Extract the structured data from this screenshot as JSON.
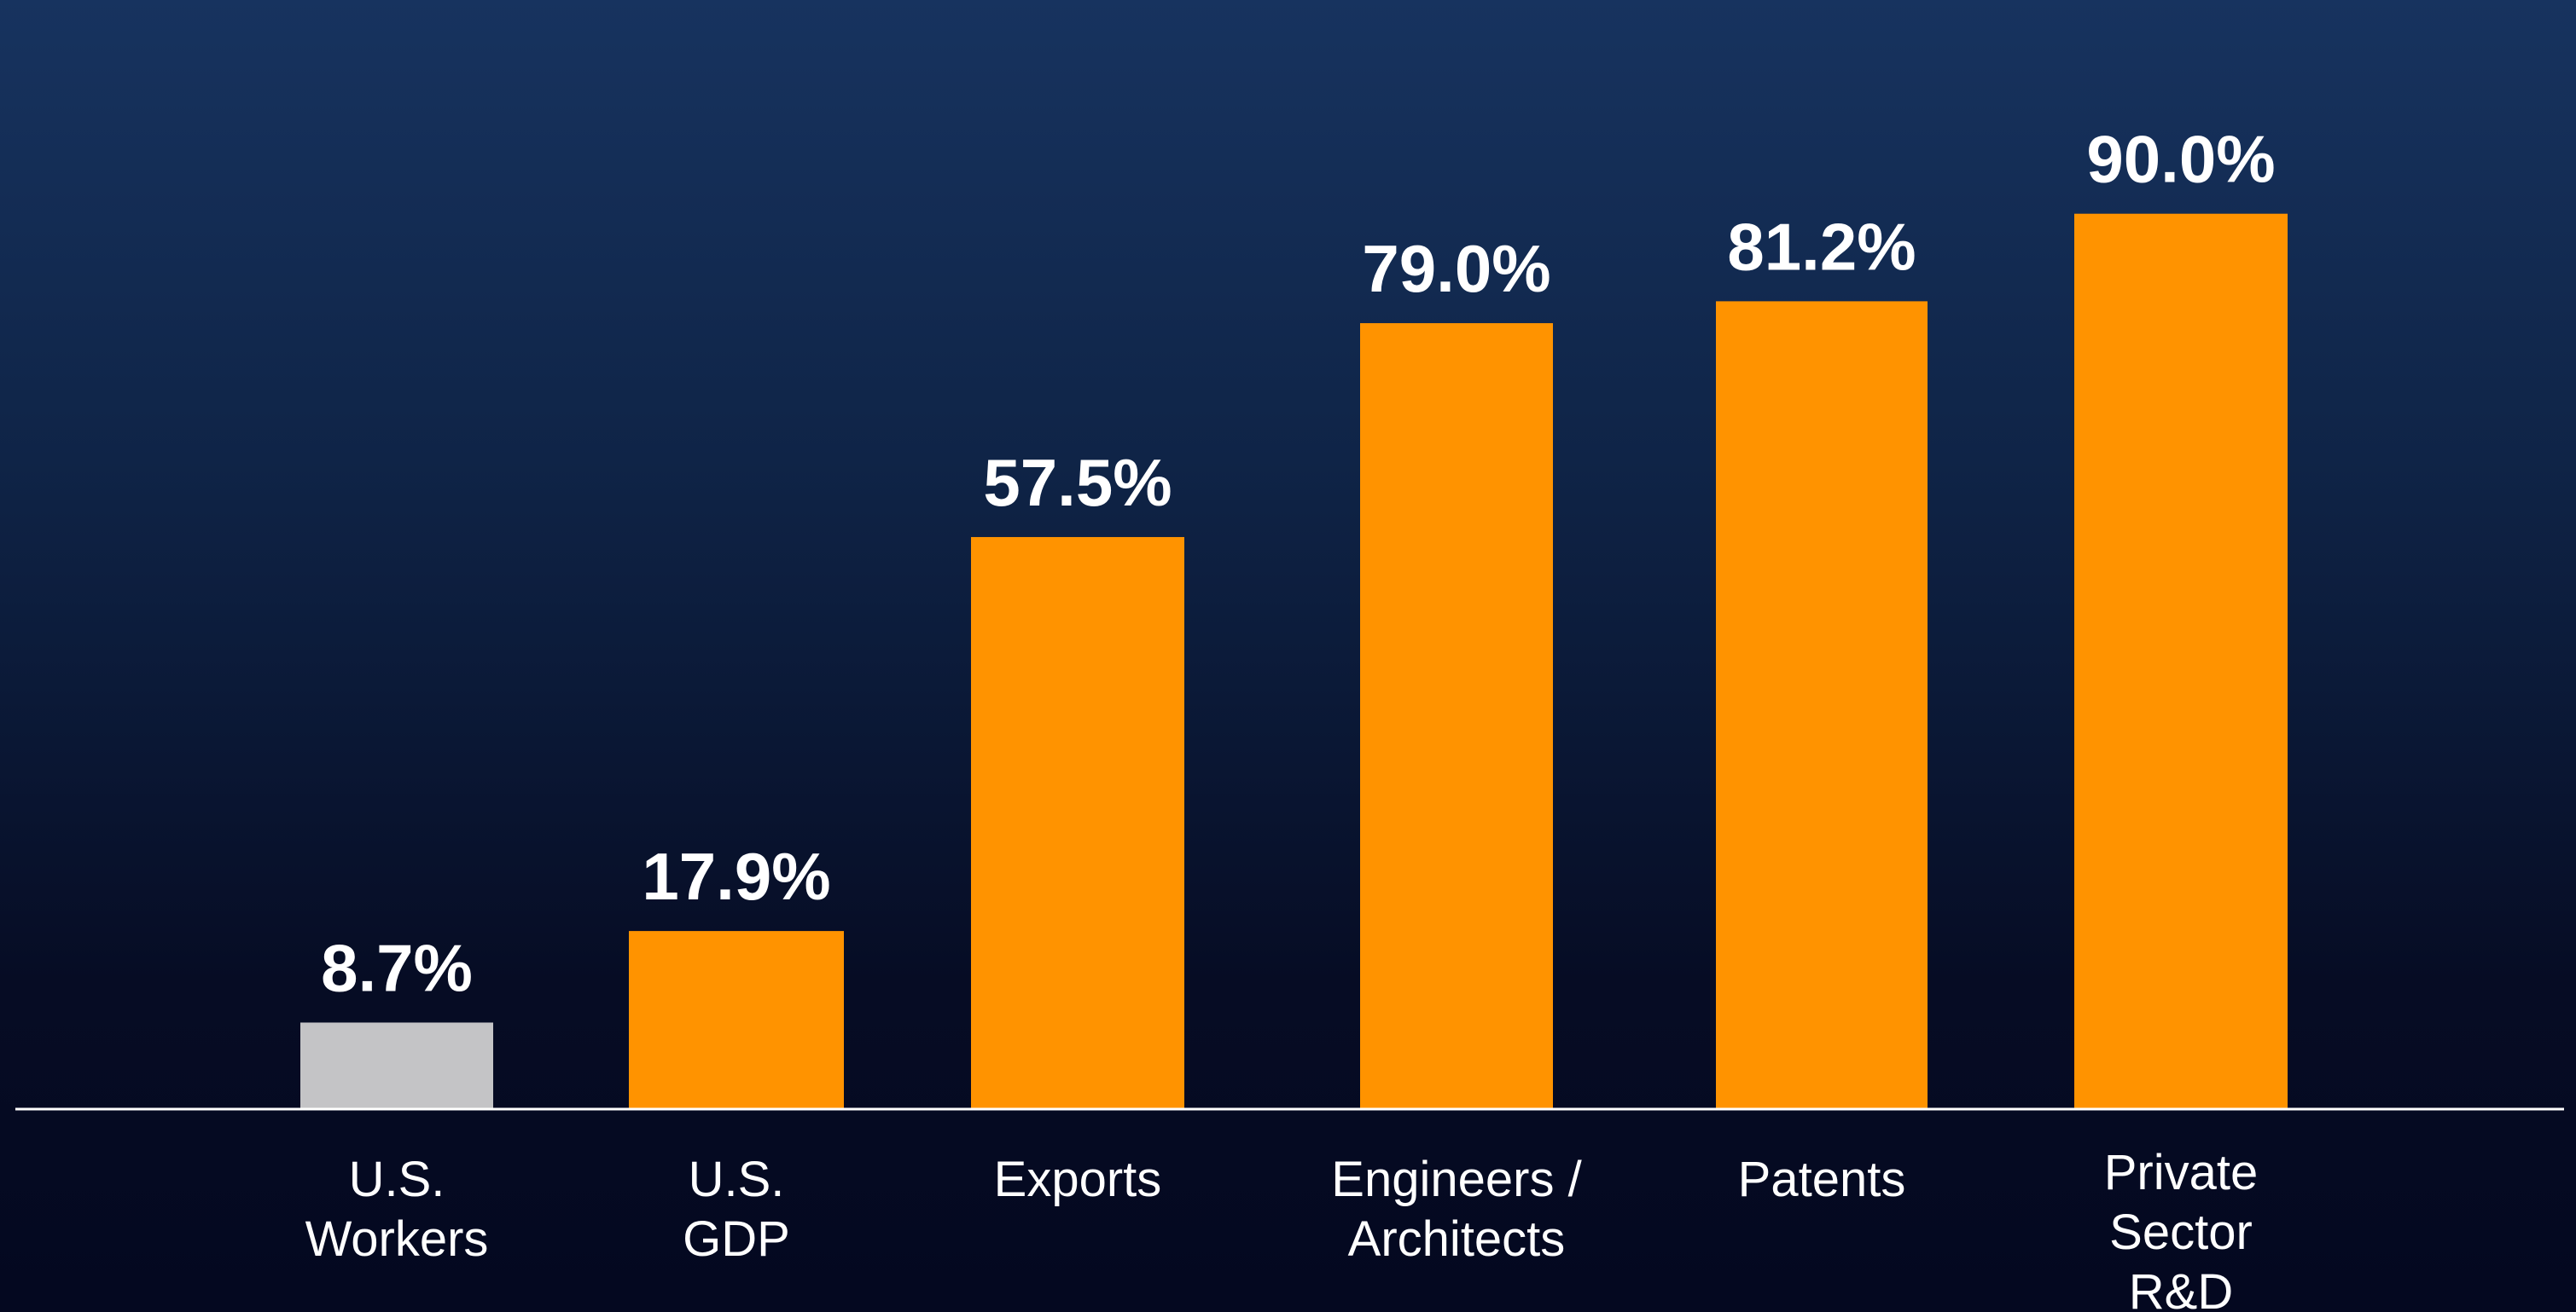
{
  "chart_data": {
    "type": "bar",
    "categories": [
      [
        "U.S.",
        "Workers"
      ],
      [
        "U.S.",
        "GDP"
      ],
      [
        "Exports"
      ],
      [
        "Engineers /",
        "Architects"
      ],
      [
        "Patents"
      ],
      [
        "Private",
        "Sector",
        "R&D"
      ]
    ],
    "values": [
      8.7,
      17.9,
      57.5,
      79.0,
      81.2,
      90.0
    ],
    "value_labels": [
      "8.7%",
      "17.9%",
      "57.5%",
      "79.0%",
      "81.2%",
      "90.0%"
    ],
    "bar_colors": [
      "#c4c4c6",
      "#ff9300",
      "#ff9300",
      "#ff9300",
      "#ff9300",
      "#ff9300"
    ],
    "title": "",
    "xlabel": "",
    "ylabel": "",
    "ylim": [
      0,
      100
    ],
    "grid": false,
    "legend": "none"
  },
  "colors": {
    "highlight": "#ff9300",
    "baseline": "#c4c4c6",
    "text": "#ffffff",
    "axis": "#ffffff"
  }
}
